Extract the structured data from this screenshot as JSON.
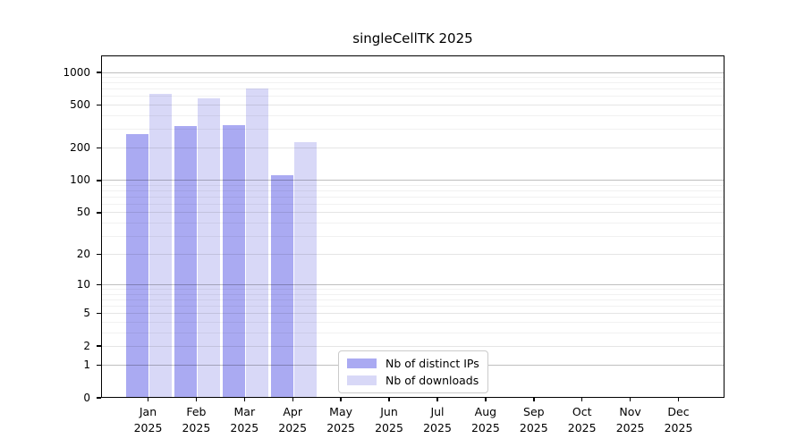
{
  "chart_data": {
    "type": "bar",
    "title": "singleCellTK 2025",
    "categories": [
      "Jan",
      "Feb",
      "Mar",
      "Apr",
      "May",
      "Jun",
      "Jul",
      "Aug",
      "Sep",
      "Oct",
      "Nov",
      "Dec"
    ],
    "year_label": "2025",
    "series": [
      {
        "name": "Nb of distinct IPs",
        "color": "#aaaaf2",
        "values": [
          270,
          320,
          325,
          112,
          null,
          null,
          null,
          null,
          null,
          null,
          null,
          null
        ]
      },
      {
        "name": "Nb of downloads",
        "color": "#d8d8f7",
        "values": [
          635,
          575,
          715,
          225,
          null,
          null,
          null,
          null,
          null,
          null,
          null,
          null
        ]
      }
    ],
    "yscale": "log1p",
    "y_ticks": [
      0,
      1,
      2,
      5,
      10,
      20,
      50,
      100,
      200,
      500,
      1000
    ],
    "ylim": [
      0,
      1400
    ],
    "grid": true,
    "legend_position": "lower center"
  }
}
